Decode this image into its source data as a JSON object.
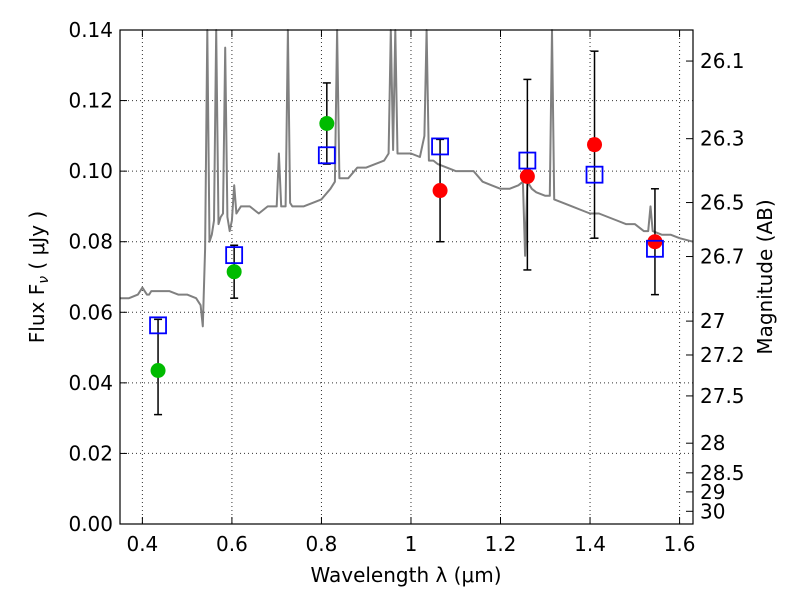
{
  "chart_data": {
    "type": "scatter",
    "xlabel": "Wavelength  λ (μm)",
    "ylabel": "Flux  F",
    "ylabel_sub": "ν",
    "ylabel_unit": " ( μJy )",
    "y2label": "Magnitude (AB)",
    "xlim": [
      0.35,
      1.63
    ],
    "ylim": [
      0.0,
      0.14
    ],
    "grid": true,
    "x_ticks": [
      {
        "value": 0.4,
        "label": "0.4"
      },
      {
        "value": 0.6,
        "label": "0.6"
      },
      {
        "value": 0.8,
        "label": "0.8"
      },
      {
        "value": 1.0,
        "label": "1"
      },
      {
        "value": 1.2,
        "label": "1.2"
      },
      {
        "value": 1.4,
        "label": "1.4"
      },
      {
        "value": 1.6,
        "label": "1.6"
      }
    ],
    "y_ticks": [
      {
        "value": 0.0,
        "label": "0.00"
      },
      {
        "value": 0.02,
        "label": "0.02"
      },
      {
        "value": 0.04,
        "label": "0.04"
      },
      {
        "value": 0.06,
        "label": "0.06"
      },
      {
        "value": 0.08,
        "label": "0.08"
      },
      {
        "value": 0.1,
        "label": "0.10"
      },
      {
        "value": 0.12,
        "label": "0.12"
      },
      {
        "value": 0.14,
        "label": "0.14"
      }
    ],
    "y2_ticks": [
      {
        "flux": 0.1312,
        "label": "26.1"
      },
      {
        "flux": 0.1092,
        "label": "26.3"
      },
      {
        "flux": 0.0911,
        "label": "26.5"
      },
      {
        "flux": 0.0758,
        "label": "26.7"
      },
      {
        "flux": 0.0575,
        "label": "27"
      },
      {
        "flux": 0.0479,
        "label": "27.2"
      },
      {
        "flux": 0.0363,
        "label": "27.5"
      },
      {
        "flux": 0.0229,
        "label": "28"
      },
      {
        "flux": 0.0145,
        "label": "28.5"
      },
      {
        "flux": 0.0091,
        "label": "29"
      },
      {
        "flux": 0.0036,
        "label": "30"
      }
    ],
    "series": [
      {
        "type": "line",
        "color": "#808080",
        "x": [
          0.35,
          0.37,
          0.39,
          0.4,
          0.41,
          0.415,
          0.42,
          0.44,
          0.46,
          0.48,
          0.5,
          0.52,
          0.53,
          0.535,
          0.54,
          0.545,
          0.55,
          0.555,
          0.56,
          0.565,
          0.57,
          0.575,
          0.58,
          0.585,
          0.59,
          0.595,
          0.6,
          0.605,
          0.61,
          0.615,
          0.62,
          0.64,
          0.66,
          0.68,
          0.7,
          0.705,
          0.71,
          0.72,
          0.725,
          0.73,
          0.735,
          0.74,
          0.76,
          0.78,
          0.8,
          0.82,
          0.83,
          0.835,
          0.84,
          0.86,
          0.88,
          0.9,
          0.92,
          0.94,
          0.95,
          0.955,
          0.96,
          0.965,
          0.97,
          0.98,
          1.0,
          1.02,
          1.03,
          1.035,
          1.04,
          1.05,
          1.06,
          1.08,
          1.1,
          1.12,
          1.14,
          1.16,
          1.18,
          1.2,
          1.22,
          1.24,
          1.25,
          1.255,
          1.26,
          1.27,
          1.28,
          1.3,
          1.31,
          1.315,
          1.32,
          1.34,
          1.36,
          1.38,
          1.4,
          1.42,
          1.44,
          1.46,
          1.48,
          1.5,
          1.52,
          1.53,
          1.535,
          1.54,
          1.56,
          1.58,
          1.6,
          1.63
        ],
        "y": [
          0.064,
          0.064,
          0.065,
          0.067,
          0.065,
          0.065,
          0.066,
          0.066,
          0.066,
          0.065,
          0.065,
          0.064,
          0.062,
          0.056,
          0.078,
          0.14,
          0.08,
          0.082,
          0.086,
          0.14,
          0.085,
          0.087,
          0.088,
          0.135,
          0.087,
          0.083,
          0.086,
          0.096,
          0.088,
          0.089,
          0.09,
          0.09,
          0.088,
          0.09,
          0.09,
          0.105,
          0.09,
          0.09,
          0.14,
          0.091,
          0.09,
          0.09,
          0.09,
          0.091,
          0.092,
          0.095,
          0.097,
          0.14,
          0.098,
          0.098,
          0.101,
          0.101,
          0.102,
          0.103,
          0.105,
          0.14,
          0.106,
          0.14,
          0.105,
          0.105,
          0.105,
          0.104,
          0.11,
          0.14,
          0.103,
          0.103,
          0.102,
          0.101,
          0.1,
          0.1,
          0.1,
          0.097,
          0.096,
          0.095,
          0.095,
          0.096,
          0.097,
          0.076,
          0.097,
          0.095,
          0.094,
          0.093,
          0.093,
          0.14,
          0.092,
          0.091,
          0.09,
          0.089,
          0.088,
          0.088,
          0.087,
          0.086,
          0.085,
          0.085,
          0.083,
          0.083,
          0.09,
          0.083,
          0.082,
          0.082,
          0.081,
          0.08
        ]
      },
      {
        "type": "errorbar",
        "color": "#000000",
        "points": [
          {
            "x": 0.435,
            "low": 0.031,
            "high": 0.058
          },
          {
            "x": 0.605,
            "low": 0.064,
            "high": 0.079
          },
          {
            "x": 0.812,
            "low": 0.102,
            "high": 0.125
          },
          {
            "x": 1.065,
            "low": 0.08,
            "high": 0.109
          },
          {
            "x": 1.26,
            "low": 0.072,
            "high": 0.126
          },
          {
            "x": 1.41,
            "low": 0.081,
            "high": 0.134
          },
          {
            "x": 1.545,
            "low": 0.065,
            "high": 0.095
          }
        ]
      },
      {
        "type": "scatter",
        "marker": "circle",
        "color": "#00bb00",
        "x": [
          0.435,
          0.605,
          0.812
        ],
        "y": [
          0.0435,
          0.0715,
          0.1135
        ]
      },
      {
        "type": "scatter",
        "marker": "circle",
        "color": "#ff0000",
        "x": [
          1.065,
          1.26,
          1.41,
          1.545
        ],
        "y": [
          0.0945,
          0.0985,
          0.1075,
          0.08
        ]
      },
      {
        "type": "scatter",
        "marker": "open-square",
        "color": "#0000ff",
        "x": [
          0.435,
          0.605,
          0.812,
          1.065,
          1.26,
          1.41,
          1.545
        ],
        "y": [
          0.0563,
          0.0762,
          0.1045,
          0.107,
          0.103,
          0.099,
          0.078
        ]
      }
    ]
  }
}
